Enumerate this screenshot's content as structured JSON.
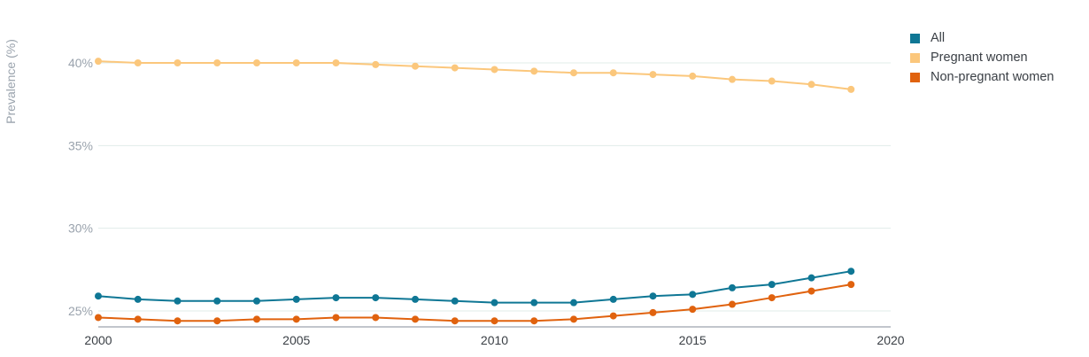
{
  "chart_data": {
    "type": "line",
    "ylabel": "Prevalence (%)",
    "xlabel": "",
    "x": [
      2000,
      2001,
      2002,
      2003,
      2004,
      2005,
      2006,
      2007,
      2008,
      2009,
      2010,
      2011,
      2012,
      2013,
      2014,
      2015,
      2016,
      2017,
      2018,
      2019
    ],
    "xlim": [
      2000,
      2020
    ],
    "ylim": [
      24,
      42
    ],
    "x_ticks": [
      "2000",
      "2005",
      "2010",
      "2015",
      "2020"
    ],
    "x_tick_values": [
      2000,
      2005,
      2010,
      2015,
      2020
    ],
    "y_ticks": [
      "25%",
      "30%",
      "35%",
      "40%"
    ],
    "y_tick_values": [
      25,
      30,
      35,
      40
    ],
    "grid": true,
    "legend_position": "top-right",
    "series": [
      {
        "name": "All",
        "color": "#0f7795",
        "values": [
          25.9,
          25.7,
          25.6,
          25.6,
          25.6,
          25.7,
          25.8,
          25.8,
          25.7,
          25.6,
          25.5,
          25.5,
          25.5,
          25.7,
          25.9,
          26.0,
          26.4,
          26.6,
          27.0,
          27.4
        ]
      },
      {
        "name": "Pregnant women",
        "color": "#fbc77c",
        "values": [
          40.1,
          40.0,
          40.0,
          40.0,
          40.0,
          40.0,
          40.0,
          39.9,
          39.8,
          39.7,
          39.6,
          39.5,
          39.4,
          39.4,
          39.3,
          39.2,
          39.0,
          38.9,
          38.7,
          38.4
        ]
      },
      {
        "name": "Non-pregnant women",
        "color": "#e0620e",
        "values": [
          24.6,
          24.5,
          24.4,
          24.4,
          24.5,
          24.5,
          24.6,
          24.6,
          24.5,
          24.4,
          24.4,
          24.4,
          24.5,
          24.7,
          24.9,
          25.1,
          25.4,
          25.8,
          26.2,
          26.6
        ]
      }
    ]
  }
}
